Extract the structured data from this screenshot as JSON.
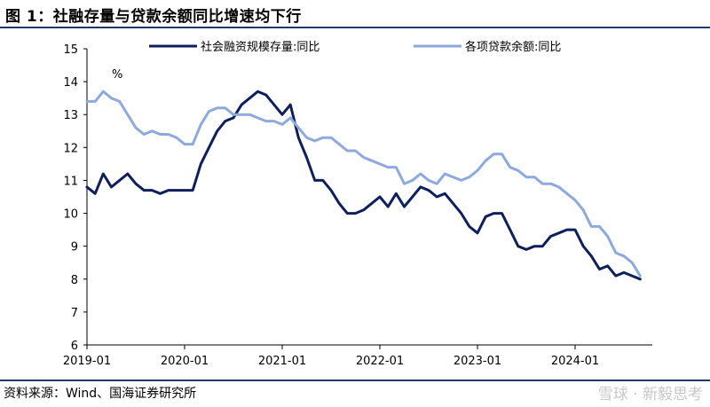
{
  "figure": {
    "title": "图 1：社融存量与贷款余额同比增速均下行",
    "source": "资料来源：Wind、国海证券研究所",
    "watermark": "雪球 · 新毅思考"
  },
  "chart_data": {
    "type": "line",
    "unit_label": "%",
    "ylim": [
      6,
      15
    ],
    "yticks": [
      6,
      7,
      8,
      9,
      10,
      11,
      12,
      13,
      14,
      15
    ],
    "xlim": [
      "2019-01",
      "2024-09"
    ],
    "xticks": [
      "2019-01",
      "2020-01",
      "2021-01",
      "2022-01",
      "2023-01",
      "2024-01"
    ],
    "grid": false,
    "legend_position": "top",
    "series": [
      {
        "name": "社会融资规模存量:同比",
        "color": "#0f1f5c",
        "points": [
          [
            "2019-01",
            10.8
          ],
          [
            "2019-02",
            10.6
          ],
          [
            "2019-03",
            11.2
          ],
          [
            "2019-04",
            10.8
          ],
          [
            "2019-05",
            11.0
          ],
          [
            "2019-06",
            11.2
          ],
          [
            "2019-07",
            10.9
          ],
          [
            "2019-08",
            10.7
          ],
          [
            "2019-09",
            10.7
          ],
          [
            "2019-10",
            10.6
          ],
          [
            "2019-11",
            10.7
          ],
          [
            "2019-12",
            10.7
          ],
          [
            "2020-01",
            10.7
          ],
          [
            "2020-02",
            10.7
          ],
          [
            "2020-03",
            11.5
          ],
          [
            "2020-04",
            12.0
          ],
          [
            "2020-05",
            12.5
          ],
          [
            "2020-06",
            12.8
          ],
          [
            "2020-07",
            12.9
          ],
          [
            "2020-08",
            13.3
          ],
          [
            "2020-09",
            13.5
          ],
          [
            "2020-10",
            13.7
          ],
          [
            "2020-11",
            13.6
          ],
          [
            "2020-12",
            13.3
          ],
          [
            "2021-01",
            13.0
          ],
          [
            "2021-02",
            13.3
          ],
          [
            "2021-03",
            12.3
          ],
          [
            "2021-04",
            11.7
          ],
          [
            "2021-05",
            11.0
          ],
          [
            "2021-06",
            11.0
          ],
          [
            "2021-07",
            10.7
          ],
          [
            "2021-08",
            10.3
          ],
          [
            "2021-09",
            10.0
          ],
          [
            "2021-10",
            10.0
          ],
          [
            "2021-11",
            10.1
          ],
          [
            "2021-12",
            10.3
          ],
          [
            "2022-01",
            10.5
          ],
          [
            "2022-02",
            10.2
          ],
          [
            "2022-03",
            10.6
          ],
          [
            "2022-04",
            10.2
          ],
          [
            "2022-05",
            10.5
          ],
          [
            "2022-06",
            10.8
          ],
          [
            "2022-07",
            10.7
          ],
          [
            "2022-08",
            10.5
          ],
          [
            "2022-09",
            10.6
          ],
          [
            "2022-10",
            10.3
          ],
          [
            "2022-11",
            10.0
          ],
          [
            "2022-12",
            9.6
          ],
          [
            "2023-01",
            9.4
          ],
          [
            "2023-02",
            9.9
          ],
          [
            "2023-03",
            10.0
          ],
          [
            "2023-04",
            10.0
          ],
          [
            "2023-05",
            9.5
          ],
          [
            "2023-06",
            9.0
          ],
          [
            "2023-07",
            8.9
          ],
          [
            "2023-08",
            9.0
          ],
          [
            "2023-09",
            9.0
          ],
          [
            "2023-10",
            9.3
          ],
          [
            "2023-11",
            9.4
          ],
          [
            "2023-12",
            9.5
          ],
          [
            "2024-01",
            9.5
          ],
          [
            "2024-02",
            9.0
          ],
          [
            "2024-03",
            8.7
          ],
          [
            "2024-04",
            8.3
          ],
          [
            "2024-05",
            8.4
          ],
          [
            "2024-06",
            8.1
          ],
          [
            "2024-07",
            8.2
          ],
          [
            "2024-08",
            8.1
          ],
          [
            "2024-09",
            8.0
          ]
        ]
      },
      {
        "name": "各项贷款余额:同比",
        "color": "#8ea9db",
        "points": [
          [
            "2019-01",
            13.4
          ],
          [
            "2019-02",
            13.4
          ],
          [
            "2019-03",
            13.7
          ],
          [
            "2019-04",
            13.5
          ],
          [
            "2019-05",
            13.4
          ],
          [
            "2019-06",
            13.0
          ],
          [
            "2019-07",
            12.6
          ],
          [
            "2019-08",
            12.4
          ],
          [
            "2019-09",
            12.5
          ],
          [
            "2019-10",
            12.4
          ],
          [
            "2019-11",
            12.4
          ],
          [
            "2019-12",
            12.3
          ],
          [
            "2020-01",
            12.1
          ],
          [
            "2020-02",
            12.1
          ],
          [
            "2020-03",
            12.7
          ],
          [
            "2020-04",
            13.1
          ],
          [
            "2020-05",
            13.2
          ],
          [
            "2020-06",
            13.2
          ],
          [
            "2020-07",
            13.0
          ],
          [
            "2020-08",
            13.0
          ],
          [
            "2020-09",
            13.0
          ],
          [
            "2020-10",
            12.9
          ],
          [
            "2020-11",
            12.8
          ],
          [
            "2020-12",
            12.8
          ],
          [
            "2021-01",
            12.7
          ],
          [
            "2021-02",
            12.9
          ],
          [
            "2021-03",
            12.6
          ],
          [
            "2021-04",
            12.3
          ],
          [
            "2021-05",
            12.2
          ],
          [
            "2021-06",
            12.3
          ],
          [
            "2021-07",
            12.3
          ],
          [
            "2021-08",
            12.1
          ],
          [
            "2021-09",
            11.9
          ],
          [
            "2021-10",
            11.9
          ],
          [
            "2021-11",
            11.7
          ],
          [
            "2021-12",
            11.6
          ],
          [
            "2022-01",
            11.5
          ],
          [
            "2022-02",
            11.4
          ],
          [
            "2022-03",
            11.4
          ],
          [
            "2022-04",
            10.9
          ],
          [
            "2022-05",
            11.0
          ],
          [
            "2022-06",
            11.2
          ],
          [
            "2022-07",
            11.0
          ],
          [
            "2022-08",
            10.9
          ],
          [
            "2022-09",
            11.2
          ],
          [
            "2022-10",
            11.1
          ],
          [
            "2022-11",
            11.0
          ],
          [
            "2022-12",
            11.1
          ],
          [
            "2023-01",
            11.3
          ],
          [
            "2023-02",
            11.6
          ],
          [
            "2023-03",
            11.8
          ],
          [
            "2023-04",
            11.8
          ],
          [
            "2023-05",
            11.4
          ],
          [
            "2023-06",
            11.3
          ],
          [
            "2023-07",
            11.1
          ],
          [
            "2023-08",
            11.1
          ],
          [
            "2023-09",
            10.9
          ],
          [
            "2023-10",
            10.9
          ],
          [
            "2023-11",
            10.8
          ],
          [
            "2023-12",
            10.6
          ],
          [
            "2024-01",
            10.4
          ],
          [
            "2024-02",
            10.1
          ],
          [
            "2024-03",
            9.6
          ],
          [
            "2024-04",
            9.6
          ],
          [
            "2024-05",
            9.3
          ],
          [
            "2024-06",
            8.8
          ],
          [
            "2024-07",
            8.7
          ],
          [
            "2024-08",
            8.5
          ],
          [
            "2024-09",
            8.1
          ]
        ]
      }
    ]
  }
}
